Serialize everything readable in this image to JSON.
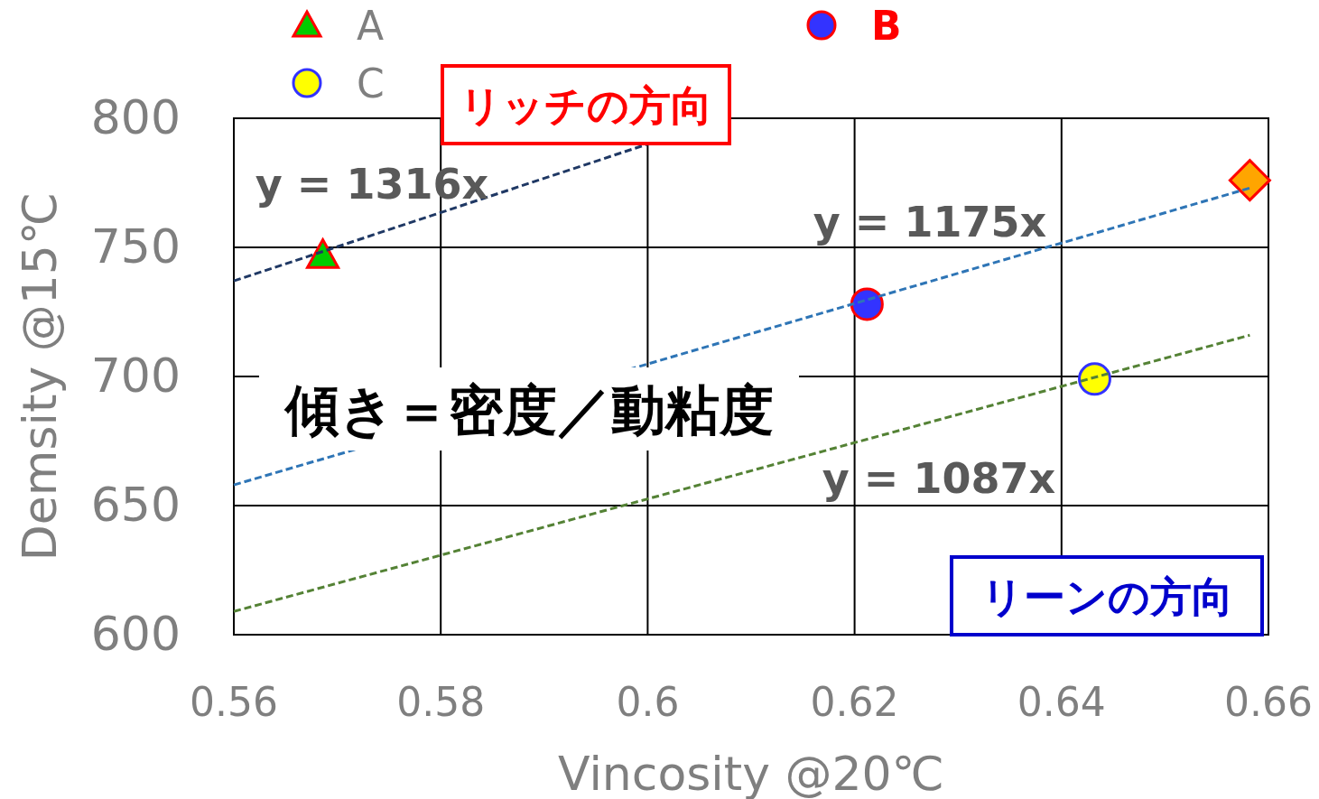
{
  "chart_data": {
    "type": "scatter",
    "xlabel": "Vincosity @20℃",
    "ylabel": "Demsity @15℃",
    "xlim": [
      0.56,
      0.66
    ],
    "xticks": [
      0.56,
      0.58,
      {
        "value": 0.6,
        "label": "0.6"
      },
      0.62,
      0.64,
      0.66
    ],
    "ylim": [
      600,
      800
    ],
    "yticks": [
      600,
      650,
      700,
      750,
      800
    ],
    "grid": true,
    "legend": "top",
    "series": [
      {
        "name": "A",
        "marker": "triangle",
        "color": "#00cc00",
        "x": [
          0.5686
        ],
        "values": [
          747
        ]
      },
      {
        "name": "B",
        "marker": "circle",
        "color": "#3333ff",
        "x": [
          0.6212
        ],
        "values": [
          728
        ]
      },
      {
        "name": "C",
        "marker": "circle",
        "color": "#ffff00",
        "x": [
          0.6432
        ],
        "values": [
          699
        ]
      },
      {
        "marker": "diamond",
        "color": "#ffa500",
        "x": [
          0.6582
        ],
        "values": [
          776
        ]
      },
      {
        "type": "line",
        "line_style": "dashed",
        "color": "#1f3864",
        "x": [
          0.56,
          0.6
        ],
        "values": [
          737,
          790
        ]
      },
      {
        "type": "line",
        "line_style": "dashed",
        "color": "#2e75b6",
        "x": [
          0.56,
          0.6582
        ],
        "values": [
          658,
          773
        ]
      },
      {
        "type": "line",
        "line_style": "dashed",
        "color": "#548235",
        "x": [
          0.56,
          0.6582
        ],
        "values": [
          609,
          716
        ]
      }
    ],
    "annotations": [
      "y = 1316x",
      "y = 1175x",
      "y = 1087x",
      "リッチの方向",
      "リーンの方向",
      "傾き＝密度／動粘度"
    ]
  }
}
